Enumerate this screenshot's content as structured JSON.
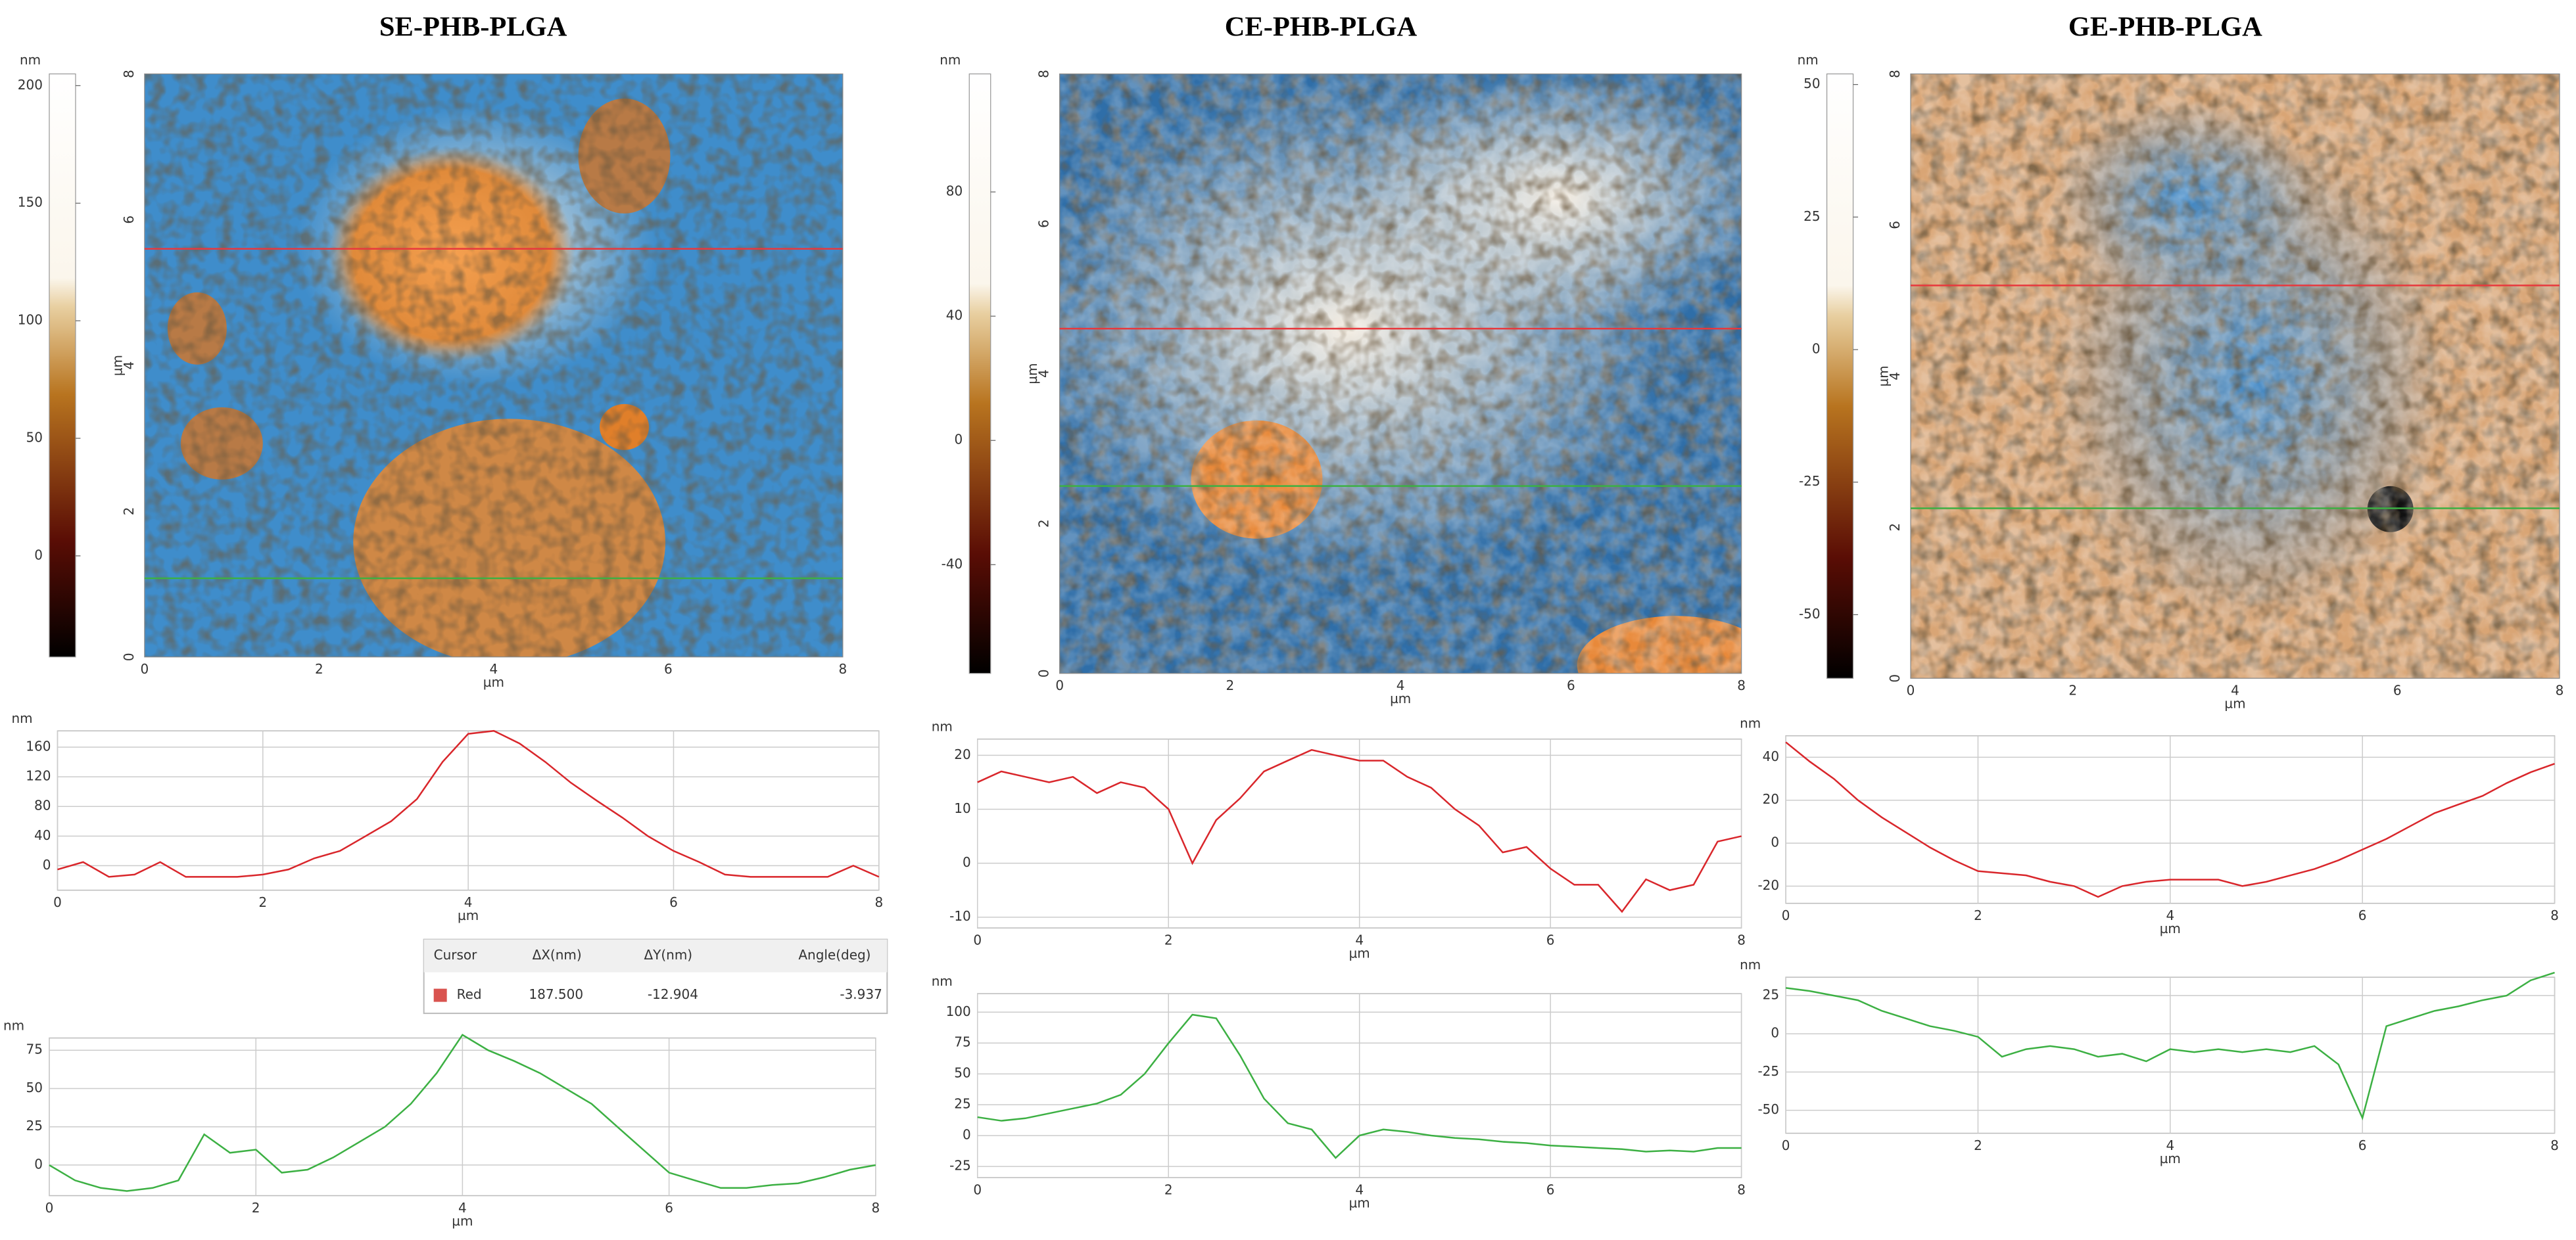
{
  "images": [
    {
      "title": "SE-PHB-PLGA",
      "colorbar_unit": "nm",
      "colorbar_lim": [
        -43,
        205
      ],
      "colorbar_ticks": [
        200,
        150,
        100,
        50,
        0
      ],
      "xlim": [
        0,
        8
      ],
      "xticks": [
        0,
        2,
        4,
        6,
        8
      ],
      "yticks": [
        0,
        2,
        4,
        6,
        8
      ],
      "axis_label": "µm",
      "scan_lines": [
        {
          "color": "#e8383d",
          "y": 5.6
        },
        {
          "color": "#3cb043",
          "y": 1.08
        }
      ]
    },
    {
      "title": "CE-PHB-PLGA",
      "colorbar_unit": "nm",
      "colorbar_lim": [
        -75,
        118
      ],
      "colorbar_ticks": [
        80,
        40,
        0,
        -40
      ],
      "xlim": [
        0,
        8
      ],
      "xticks": [
        0,
        2,
        4,
        6,
        8
      ],
      "yticks": [
        0,
        2,
        4,
        6,
        8
      ],
      "axis_label": "µm",
      "scan_lines": [
        {
          "color": "#e8383d",
          "y": 4.6
        },
        {
          "color": "#3cb043",
          "y": 2.5
        }
      ]
    },
    {
      "title": "GE-PHB-PLGA",
      "colorbar_unit": "nm",
      "colorbar_lim": [
        -62,
        52
      ],
      "colorbar_ticks": [
        50,
        25,
        0,
        -25,
        -50
      ],
      "xlim": [
        0,
        8
      ],
      "xticks": [
        0,
        2,
        4,
        6,
        8
      ],
      "yticks": [
        0,
        2,
        4,
        6,
        8
      ],
      "axis_label": "µm",
      "scan_lines": [
        {
          "color": "#e8383d",
          "y": 5.2
        },
        {
          "color": "#3cb043",
          "y": 2.25
        }
      ]
    }
  ],
  "cursor_table": {
    "headers": [
      "Cursor",
      "ΔX(nm)",
      "ΔY(nm)",
      "Angle(deg)"
    ],
    "rows": [
      [
        "Red",
        "187.500",
        "-12.904",
        "-3.937"
      ]
    ]
  },
  "chart_data": [
    {
      "type": "line",
      "y_label": "nm",
      "x_label": "µm",
      "color": "#d9262b",
      "xlim": [
        0,
        8
      ],
      "xticks": [
        0,
        2,
        4,
        6,
        8
      ],
      "ylim": [
        -33,
        182
      ],
      "yticks": [
        160,
        120,
        80,
        40,
        0
      ],
      "grid": true,
      "x": [
        0,
        0.25,
        0.5,
        0.75,
        1,
        1.25,
        1.5,
        1.75,
        2,
        2.25,
        2.5,
        2.75,
        3,
        3.25,
        3.5,
        3.75,
        4,
        4.25,
        4.5,
        4.75,
        5,
        5.25,
        5.5,
        5.75,
        6,
        6.25,
        6.5,
        6.75,
        7,
        7.25,
        7.5,
        7.75,
        8
      ],
      "values": [
        -5,
        5,
        -15,
        -12,
        5,
        -15,
        -15,
        -15,
        -12,
        -5,
        10,
        20,
        40,
        60,
        90,
        140,
        178,
        182,
        165,
        140,
        112,
        88,
        65,
        40,
        20,
        5,
        -12,
        -15,
        -15,
        -15,
        -15,
        0,
        -15
      ]
    },
    {
      "type": "line",
      "y_label": "nm",
      "x_label": "µm",
      "color": "#3cb043",
      "xlim": [
        0,
        8
      ],
      "xticks": [
        0,
        2,
        4,
        6,
        8
      ],
      "ylim": [
        -20,
        83
      ],
      "yticks": [
        75,
        50,
        25,
        0
      ],
      "grid": true,
      "x": [
        0,
        0.25,
        0.5,
        0.75,
        1,
        1.25,
        1.5,
        1.75,
        2,
        2.25,
        2.5,
        2.75,
        3,
        3.25,
        3.5,
        3.75,
        4,
        4.25,
        4.5,
        4.75,
        5,
        5.25,
        5.5,
        5.75,
        6,
        6.25,
        6.5,
        6.75,
        7,
        7.25,
        7.5,
        7.75,
        8
      ],
      "values": [
        0,
        -10,
        -15,
        -17,
        -15,
        -10,
        20,
        8,
        10,
        -5,
        -3,
        5,
        15,
        25,
        40,
        60,
        85,
        75,
        68,
        60,
        50,
        40,
        25,
        10,
        -5,
        -10,
        -15,
        -15,
        -13,
        -12,
        -8,
        -3,
        0
      ]
    },
    {
      "type": "line",
      "y_label": "nm",
      "x_label": "µm",
      "color": "#d9262b",
      "xlim": [
        0,
        8
      ],
      "xticks": [
        0,
        2,
        4,
        6,
        8
      ],
      "ylim": [
        -12,
        23
      ],
      "yticks": [
        20,
        10,
        0,
        -10
      ],
      "grid": true,
      "x": [
        0,
        0.25,
        0.5,
        0.75,
        1,
        1.25,
        1.5,
        1.75,
        2,
        2.25,
        2.5,
        2.75,
        3,
        3.25,
        3.5,
        3.75,
        4,
        4.25,
        4.5,
        4.75,
        5,
        5.25,
        5.5,
        5.75,
        6,
        6.25,
        6.5,
        6.75,
        7,
        7.25,
        7.5,
        7.75,
        8
      ],
      "values": [
        15,
        17,
        16,
        15,
        16,
        13,
        15,
        14,
        10,
        0,
        8,
        12,
        17,
        19,
        21,
        20,
        19,
        19,
        16,
        14,
        10,
        7,
        2,
        3,
        -1,
        -4,
        -4,
        -9,
        -3,
        -5,
        -4,
        4,
        5
      ]
    },
    {
      "type": "line",
      "y_label": "nm",
      "x_label": "µm",
      "color": "#3cb043",
      "xlim": [
        0,
        8
      ],
      "xticks": [
        0,
        2,
        4,
        6,
        8
      ],
      "ylim": [
        -34,
        115
      ],
      "yticks": [
        100,
        75,
        50,
        25,
        0,
        -25
      ],
      "grid": true,
      "x": [
        0,
        0.25,
        0.5,
        0.75,
        1,
        1.25,
        1.5,
        1.75,
        2,
        2.25,
        2.5,
        2.75,
        3,
        3.25,
        3.5,
        3.75,
        4,
        4.25,
        4.5,
        4.75,
        5,
        5.25,
        5.5,
        5.75,
        6,
        6.25,
        6.5,
        6.75,
        7,
        7.25,
        7.5,
        7.75,
        8
      ],
      "values": [
        15,
        12,
        14,
        18,
        22,
        26,
        33,
        50,
        75,
        98,
        95,
        65,
        30,
        10,
        5,
        -18,
        0,
        5,
        3,
        0,
        -2,
        -3,
        -5,
        -6,
        -8,
        -9,
        -10,
        -11,
        -13,
        -12,
        -13,
        -10,
        -10
      ]
    },
    {
      "type": "line",
      "y_label": "nm",
      "x_label": "µm",
      "color": "#d9262b",
      "xlim": [
        0,
        8
      ],
      "xticks": [
        0,
        2,
        4,
        6,
        8
      ],
      "ylim": [
        -28,
        50
      ],
      "yticks": [
        40,
        20,
        0,
        -20
      ],
      "grid": true,
      "x": [
        0,
        0.25,
        0.5,
        0.75,
        1,
        1.25,
        1.5,
        1.75,
        2,
        2.25,
        2.5,
        2.75,
        3,
        3.25,
        3.5,
        3.75,
        4,
        4.25,
        4.5,
        4.75,
        5,
        5.25,
        5.5,
        5.75,
        6,
        6.25,
        6.5,
        6.75,
        7,
        7.25,
        7.5,
        7.75,
        8
      ],
      "values": [
        47,
        38,
        30,
        20,
        12,
        5,
        -2,
        -8,
        -13,
        -14,
        -15,
        -18,
        -20,
        -25,
        -20,
        -18,
        -17,
        -17,
        -17,
        -20,
        -18,
        -15,
        -12,
        -8,
        -3,
        2,
        8,
        14,
        18,
        22,
        28,
        33,
        37
      ]
    },
    {
      "type": "line",
      "y_label": "nm",
      "x_label": "µm",
      "color": "#3cb043",
      "xlim": [
        0,
        8
      ],
      "xticks": [
        0,
        2,
        4,
        6,
        8
      ],
      "ylim": [
        -65,
        37
      ],
      "yticks": [
        25,
        0,
        -25,
        -50
      ],
      "grid": true,
      "x": [
        0,
        0.25,
        0.5,
        0.75,
        1,
        1.25,
        1.5,
        1.75,
        2,
        2.25,
        2.5,
        2.75,
        3,
        3.25,
        3.5,
        3.75,
        4,
        4.25,
        4.5,
        4.75,
        5,
        5.25,
        5.5,
        5.75,
        6,
        6.25,
        6.5,
        6.75,
        7,
        7.25,
        7.5,
        7.75,
        8
      ],
      "values": [
        30,
        28,
        25,
        22,
        15,
        10,
        5,
        2,
        -2,
        -15,
        -10,
        -8,
        -10,
        -15,
        -13,
        -18,
        -10,
        -12,
        -10,
        -12,
        -10,
        -12,
        -8,
        -20,
        -55,
        5,
        10,
        15,
        18,
        22,
        25,
        35,
        40
      ]
    }
  ]
}
